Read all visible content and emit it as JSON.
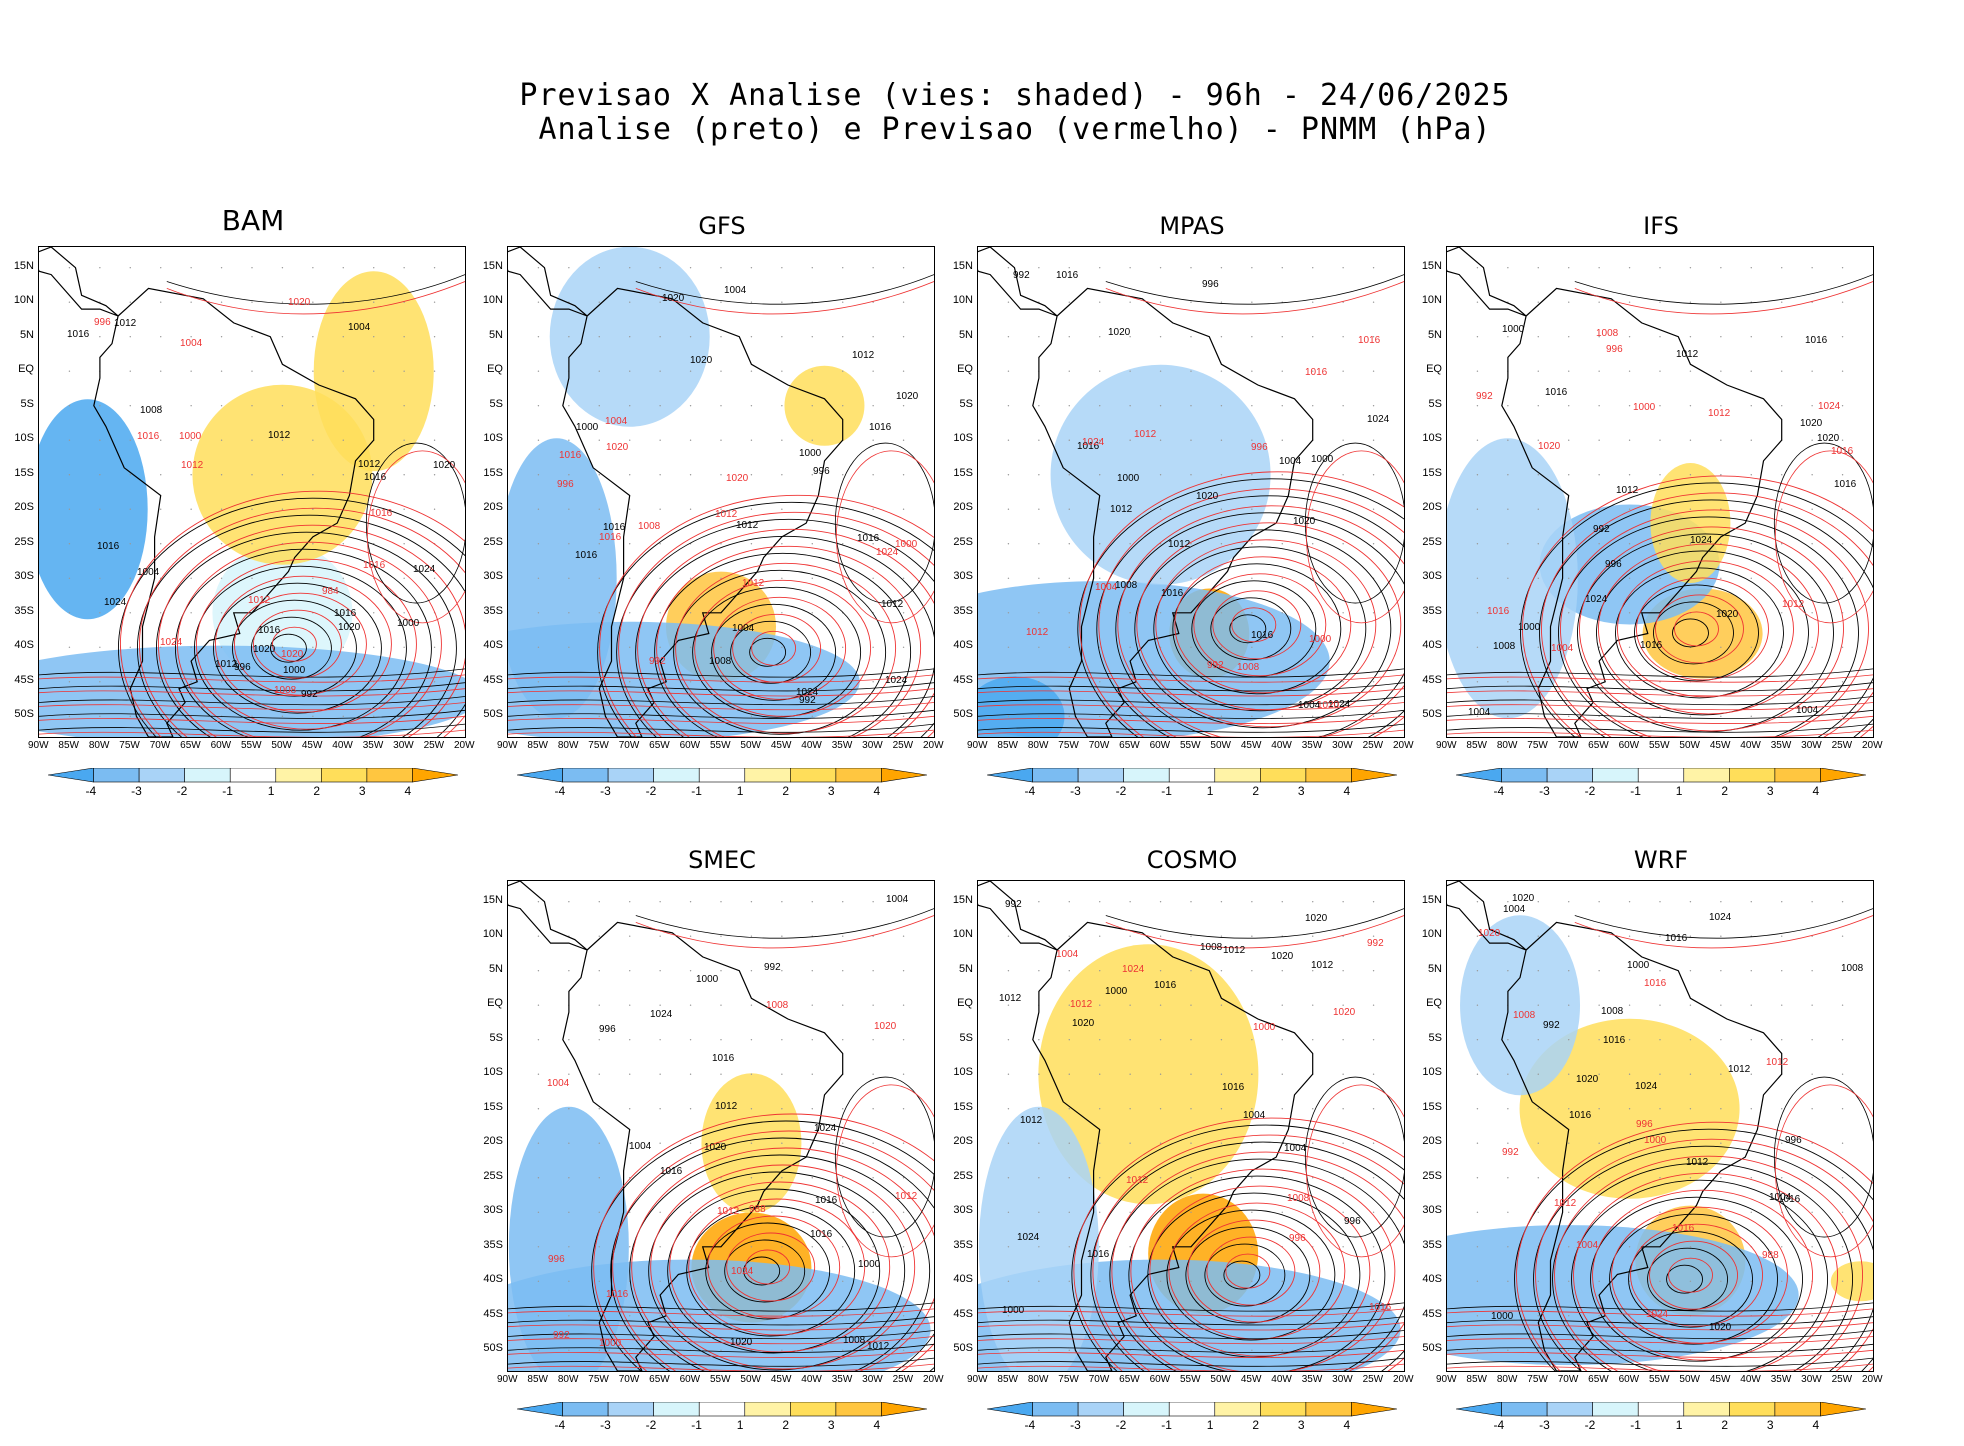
{
  "title_line1": "Previsao X Analise (vies: shaded) - 96h - 24/06/2025",
  "title_line2": "Analise (preto) e Previsao (vermelho) - PNMM (hPa)",
  "lat_labels": [
    "15N",
    "10N",
    "5N",
    "EQ",
    "5S",
    "10S",
    "15S",
    "20S",
    "25S",
    "30S",
    "35S",
    "40S",
    "45S",
    "50S"
  ],
  "lon_labels": [
    "90W",
    "85W",
    "80W",
    "75W",
    "70W",
    "65W",
    "60W",
    "55W",
    "50W",
    "45W",
    "40W",
    "35W",
    "30W",
    "25W",
    "20W"
  ],
  "colorbar": {
    "ticks": [
      "-4",
      "-3",
      "-2",
      "-1",
      "1",
      "2",
      "3",
      "4"
    ],
    "colors": [
      "#4aa8f0",
      "#7bbcf2",
      "#a9d3f7",
      "#d7f5fb",
      "#ffffff",
      "#fff3a6",
      "#ffde5a",
      "#ffc640",
      "#ffa500"
    ]
  },
  "panels": [
    {
      "name": "BAM",
      "labels_black": [
        "1012",
        "1016",
        "1012",
        "1016",
        "1020",
        "1024",
        "1020",
        "1016",
        "1012",
        "1008",
        "1004",
        "1000",
        "996",
        "992",
        "1004",
        "1000",
        "1016",
        "1020",
        "1024",
        "1016",
        "1012"
      ],
      "labels_red": [
        "1016",
        "1016",
        "1012",
        "1020",
        "1024",
        "1020",
        "1008",
        "1004",
        "1000",
        "996",
        "984",
        "1016",
        "1012"
      ]
    },
    {
      "name": "GFS",
      "labels_black": [
        "1012",
        "1016",
        "1012",
        "1016",
        "1020",
        "1024",
        "1020",
        "1016",
        "1012",
        "1008",
        "1004",
        "1000",
        "996",
        "992",
        "1004",
        "1000",
        "1016",
        "1020",
        "1024"
      ],
      "labels_red": [
        "1016",
        "1012",
        "1020",
        "1024",
        "1008",
        "1004",
        "1000",
        "996",
        "992",
        "1012",
        "1016",
        "1020"
      ]
    },
    {
      "name": "MPAS",
      "labels_black": [
        "1012",
        "1016",
        "1016",
        "1020",
        "1024",
        "1020",
        "1016",
        "1012",
        "1008",
        "1004",
        "1000",
        "996",
        "992",
        "1004",
        "1000",
        "1016",
        "1020",
        "1024"
      ],
      "labels_red": [
        "1016",
        "1012",
        "1020",
        "1024",
        "1008",
        "1004",
        "1000",
        "996",
        "992",
        "1012",
        "1016"
      ]
    },
    {
      "name": "IFS",
      "labels_black": [
        "1016",
        "1012",
        "1016",
        "1020",
        "1024",
        "1020",
        "1016",
        "1012",
        "1008",
        "1004",
        "1000",
        "996",
        "992",
        "1004",
        "1000",
        "1016",
        "1020",
        "1024"
      ],
      "labels_red": [
        "1016",
        "1012",
        "1020",
        "1024",
        "1008",
        "1004",
        "1000",
        "996",
        "992",
        "1012",
        "1016"
      ]
    },
    {
      "name": "SMEC",
      "labels_black": [
        "1016",
        "1012",
        "1016",
        "1020",
        "1024",
        "1020",
        "1016",
        "1012",
        "1008",
        "1004",
        "1000",
        "996",
        "992",
        "1004",
        "1000",
        "1016",
        "1024"
      ],
      "labels_red": [
        "1016",
        "1012",
        "1020",
        "1024",
        "1008",
        "1004",
        "1000",
        "996",
        "992",
        "1012",
        "988"
      ]
    },
    {
      "name": "COSMO",
      "labels_black": [
        "1012",
        "1016",
        "1012",
        "1016",
        "1020",
        "1024",
        "1020",
        "1016",
        "1012",
        "1008",
        "1004",
        "1000",
        "996",
        "992",
        "1004",
        "1000",
        "1020",
        "1012"
      ],
      "labels_red": [
        "1016",
        "1012",
        "1020",
        "1024",
        "1008",
        "1004",
        "1000",
        "996",
        "992",
        "1012"
      ]
    },
    {
      "name": "WRF",
      "labels_black": [
        "1016",
        "1012",
        "1016",
        "1020",
        "1024",
        "1020",
        "1016",
        "1012",
        "1008",
        "1004",
        "1000",
        "996",
        "992",
        "1004",
        "1000",
        "1016",
        "1020",
        "1024",
        "1008"
      ],
      "labels_red": [
        "1016",
        "1012",
        "1020",
        "1024",
        "1008",
        "1004",
        "1000",
        "996",
        "992",
        "1012",
        "1016",
        "988"
      ]
    }
  ]
}
